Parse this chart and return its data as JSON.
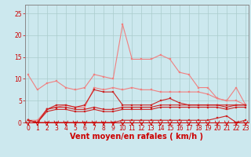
{
  "x": [
    0,
    1,
    2,
    3,
    4,
    5,
    6,
    7,
    8,
    9,
    10,
    11,
    12,
    13,
    14,
    15,
    16,
    17,
    18,
    19,
    20,
    21,
    22,
    23
  ],
  "series": [
    {
      "name": "rafales_max",
      "color": "#f08080",
      "lw": 0.8,
      "marker": "s",
      "ms": 1.8,
      "values": [
        11,
        7.5,
        9,
        9.5,
        8,
        7.5,
        8,
        11,
        10.5,
        10,
        22.5,
        14.5,
        14.5,
        14.5,
        15.5,
        14.5,
        11.5,
        11,
        8,
        8,
        5.5,
        5,
        8,
        4
      ]
    },
    {
      "name": "rafales_mid",
      "color": "#f08080",
      "lw": 0.8,
      "marker": "s",
      "ms": 1.5,
      "values": [
        0.5,
        0.5,
        3,
        3.5,
        4,
        3.5,
        3.5,
        8,
        7.5,
        8,
        7.5,
        8,
        7.5,
        7.5,
        7,
        7,
        7,
        7,
        7,
        6.5,
        5.5,
        5,
        5,
        4
      ]
    },
    {
      "name": "vent_moyen_high",
      "color": "#cc2222",
      "lw": 0.8,
      "marker": "s",
      "ms": 1.5,
      "values": [
        0.5,
        0,
        3,
        4,
        4,
        3.5,
        4,
        7.5,
        7,
        7,
        4,
        4,
        4,
        4,
        5,
        5.5,
        4.5,
        4,
        4,
        4,
        4,
        4,
        4,
        4
      ]
    },
    {
      "name": "vent_moyen_mid",
      "color": "#cc2222",
      "lw": 0.8,
      "marker": "s",
      "ms": 1.5,
      "values": [
        0.5,
        0,
        3,
        3.5,
        3.5,
        3,
        3,
        3.5,
        3,
        3,
        3.5,
        3.5,
        3.5,
        3.5,
        4,
        4,
        4,
        4,
        4,
        4,
        4,
        3.5,
        4,
        4
      ]
    },
    {
      "name": "vent_moyen_low",
      "color": "#cc2222",
      "lw": 0.8,
      "marker": "s",
      "ms": 1.5,
      "values": [
        0.5,
        0,
        2.5,
        3,
        3,
        2.5,
        2.5,
        3,
        2.5,
        2.5,
        3,
        3,
        3,
        3,
        3.5,
        3.5,
        3.5,
        3.5,
        3.5,
        3.5,
        3.5,
        3,
        3.5,
        3.5
      ]
    },
    {
      "name": "min_line",
      "color": "#cc2222",
      "lw": 0.8,
      "marker": "s",
      "ms": 1.5,
      "values": [
        0.5,
        0,
        0,
        0,
        0,
        0,
        0,
        0,
        0,
        0,
        0.5,
        0.5,
        0.5,
        0.5,
        0.5,
        0.5,
        0.5,
        0.5,
        0.5,
        0.5,
        1,
        1.5,
        0,
        0.5
      ]
    }
  ],
  "xlabel": "Vent moyen/en rafales ( km/h )",
  "xlim": [
    0,
    23
  ],
  "ylim": [
    0,
    27
  ],
  "yticks": [
    0,
    5,
    10,
    15,
    20,
    25
  ],
  "xticks": [
    0,
    1,
    2,
    3,
    4,
    5,
    6,
    7,
    8,
    9,
    10,
    11,
    12,
    13,
    14,
    15,
    16,
    17,
    18,
    19,
    20,
    21,
    22,
    23
  ],
  "xtick_labels": [
    "0",
    "1",
    "2",
    "3",
    "4",
    "5",
    "6",
    "7",
    "8",
    "9",
    "10",
    "11",
    "12",
    "13",
    "14",
    "15",
    "16",
    "17",
    "18",
    "19",
    "20",
    "21",
    "22",
    "23"
  ],
  "bg_color": "#cce8ee",
  "grid_color": "#aacccc",
  "xlabel_color": "#cc0000",
  "tick_color": "#cc0000",
  "xlabel_fontsize": 7,
  "tick_fontsize": 5.5
}
